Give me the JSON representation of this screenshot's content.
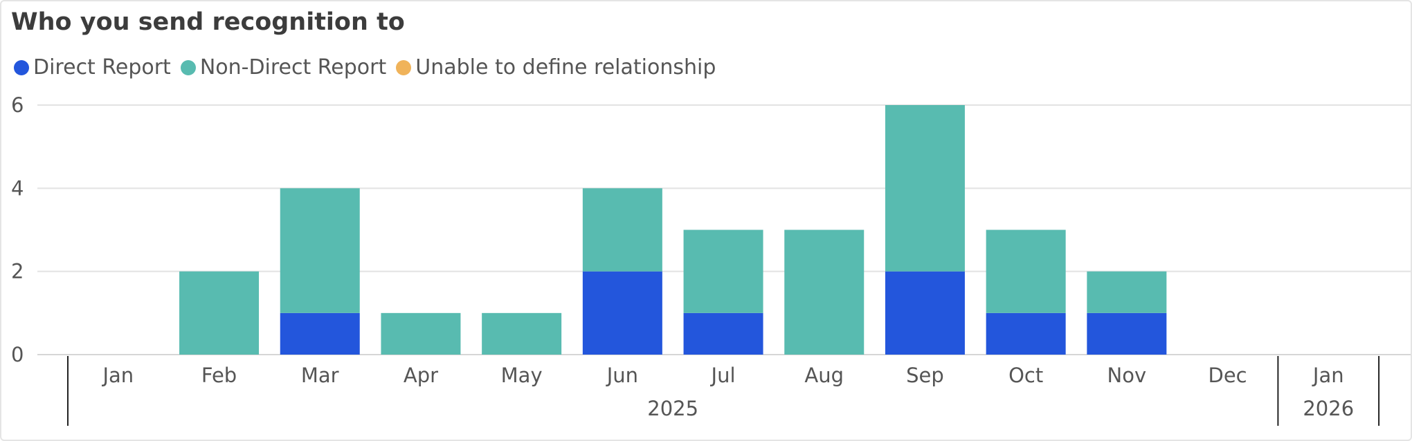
{
  "title": "Who you send recognition to",
  "legend": [
    {
      "label": "Direct Report",
      "color": "#2356dc"
    },
    {
      "label": "Non-Direct Report",
      "color": "#58bbb0"
    },
    {
      "label": "Unable to define relationship",
      "color": "#f0b35a"
    }
  ],
  "chart_data": {
    "type": "bar",
    "stacked": true,
    "categories": [
      "Jan",
      "Feb",
      "Mar",
      "Apr",
      "May",
      "Jun",
      "Jul",
      "Aug",
      "Sep",
      "Oct",
      "Nov",
      "Dec",
      "Jan"
    ],
    "year_groups": [
      {
        "label": "2025",
        "categories": [
          "Jan",
          "Feb",
          "Mar",
          "Apr",
          "May",
          "Jun",
          "Jul",
          "Aug",
          "Sep",
          "Oct",
          "Nov",
          "Dec"
        ]
      },
      {
        "label": "2026",
        "categories": [
          "Jan"
        ]
      }
    ],
    "series": [
      {
        "name": "Direct Report",
        "color": "#2356dc",
        "values": [
          0,
          0,
          1,
          0,
          0,
          2,
          1,
          0,
          2,
          1,
          1,
          0,
          0
        ]
      },
      {
        "name": "Non-Direct Report",
        "color": "#58bbb0",
        "values": [
          0,
          2,
          3,
          1,
          1,
          2,
          2,
          3,
          4,
          2,
          1,
          0,
          0
        ]
      },
      {
        "name": "Unable to define relationship",
        "color": "#f0b35a",
        "values": [
          0,
          0,
          0,
          0,
          0,
          0,
          0,
          0,
          0,
          0,
          0,
          0,
          0
        ]
      }
    ],
    "y_ticks": [
      0,
      2,
      4,
      6
    ],
    "ylim": [
      0,
      6
    ],
    "grid": true,
    "legend_position": "top-left"
  }
}
